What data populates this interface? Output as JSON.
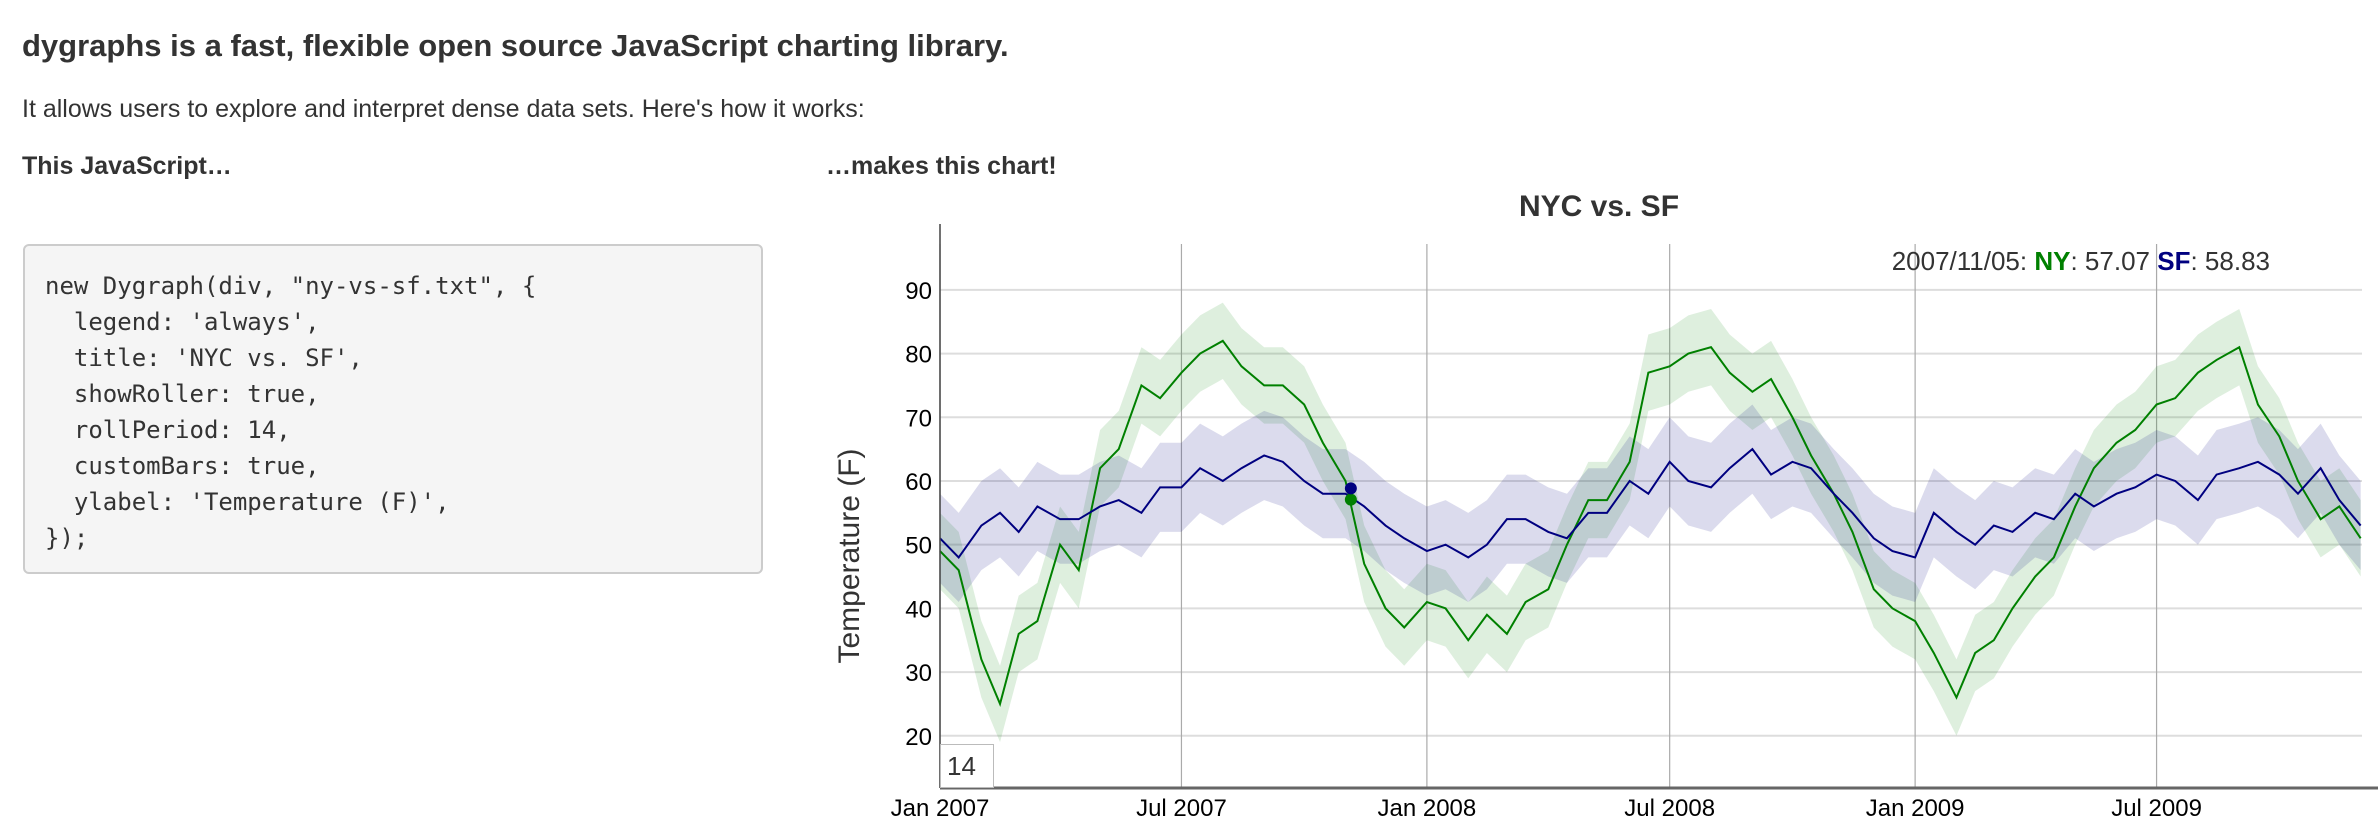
{
  "page": {
    "headline": "dygraphs is a fast, flexible open source JavaScript charting library.",
    "subline": "It allows users to explore and interpret dense data sets. Here's how it works:",
    "left_heading": "This JavaScript…",
    "right_heading": "…makes this chart!",
    "code": "new Dygraph(div, \"ny-vs-sf.txt\", {\n  legend: 'always',\n  title: 'NYC vs. SF',\n  showRoller: true,\n  rollPeriod: 14,\n  customBars: true,\n  ylabel: 'Temperature (F)',\n});"
  },
  "chart_data": {
    "type": "line",
    "title": "NYC vs. SF",
    "ylabel": "Temperature (F)",
    "xlabel": "",
    "ylim": [
      11.8,
      97.2
    ],
    "xlim": [
      "2007-01-01",
      "2009-12-02"
    ],
    "yticks": [
      20,
      30,
      40,
      50,
      60,
      70,
      80,
      90
    ],
    "xticks": [
      {
        "date": "2007-01-01",
        "label": "Jan 2007"
      },
      {
        "date": "2007-07-01",
        "label": "Jul 2007"
      },
      {
        "date": "2008-01-01",
        "label": "Jan 2008"
      },
      {
        "date": "2008-07-01",
        "label": "Jul 2008"
      },
      {
        "date": "2009-01-01",
        "label": "Jan 2009"
      },
      {
        "date": "2009-07-01",
        "label": "Jul 2009"
      }
    ],
    "grid": true,
    "roll_period": "14",
    "legend": {
      "date": "2007/11/05",
      "highlight_date": "2007-11-05",
      "entries": [
        {
          "name": "NY",
          "value": "57.07",
          "y": 57.07
        },
        {
          "name": "SF",
          "value": "58.83",
          "y": 58.83
        }
      ]
    },
    "x": [
      "2007-01-01",
      "2007-01-15",
      "2007-02-01",
      "2007-02-15",
      "2007-03-01",
      "2007-03-15",
      "2007-04-01",
      "2007-04-15",
      "2007-05-01",
      "2007-05-15",
      "2007-06-01",
      "2007-06-15",
      "2007-07-01",
      "2007-07-15",
      "2007-08-01",
      "2007-08-15",
      "2007-09-01",
      "2007-09-15",
      "2007-10-01",
      "2007-10-15",
      "2007-11-01",
      "2007-11-15",
      "2007-12-01",
      "2007-12-15",
      "2008-01-01",
      "2008-01-15",
      "2008-02-01",
      "2008-02-15",
      "2008-03-01",
      "2008-03-15",
      "2008-04-01",
      "2008-04-15",
      "2008-05-01",
      "2008-05-15",
      "2008-06-01",
      "2008-06-15",
      "2008-07-01",
      "2008-07-15",
      "2008-08-01",
      "2008-08-15",
      "2008-09-01",
      "2008-09-15",
      "2008-10-01",
      "2008-10-15",
      "2008-11-01",
      "2008-11-15",
      "2008-12-01",
      "2008-12-15",
      "2009-01-01",
      "2009-01-15",
      "2009-02-01",
      "2009-02-15",
      "2009-03-01",
      "2009-03-15",
      "2009-04-01",
      "2009-04-15",
      "2009-05-01",
      "2009-05-15",
      "2009-06-01",
      "2009-06-15",
      "2009-07-01",
      "2009-07-15",
      "2009-08-01",
      "2009-08-15",
      "2009-09-01",
      "2009-09-15",
      "2009-10-01",
      "2009-10-15",
      "2009-11-01",
      "2009-11-15",
      "2009-12-01"
    ],
    "series": [
      {
        "name": "NY",
        "color": "#008000",
        "band_halfwidth": 6,
        "values": [
          49,
          46,
          32,
          25,
          36,
          38,
          50,
          46,
          62,
          65,
          75,
          73,
          77,
          80,
          82,
          78,
          75,
          75,
          72,
          66,
          60,
          47,
          40,
          37,
          41,
          40,
          35,
          39,
          36,
          41,
          43,
          50,
          57,
          57,
          63,
          77,
          78,
          80,
          81,
          77,
          74,
          76,
          70,
          64,
          58,
          52,
          43,
          40,
          38,
          33,
          26,
          33,
          35,
          40,
          45,
          48,
          56,
          62,
          66,
          68,
          72,
          73,
          77,
          79,
          81,
          72,
          67,
          60,
          54,
          56,
          51
        ]
      },
      {
        "name": "SF",
        "color": "#000080",
        "band_halfwidth": 7,
        "values": [
          51,
          48,
          53,
          55,
          52,
          56,
          54,
          54,
          56,
          57,
          55,
          59,
          59,
          62,
          60,
          62,
          64,
          63,
          60,
          58,
          58,
          56,
          53,
          51,
          49,
          50,
          48,
          50,
          54,
          54,
          52,
          51,
          55,
          55,
          60,
          58,
          63,
          60,
          59,
          62,
          65,
          61,
          63,
          62,
          58,
          55,
          51,
          49,
          48,
          55,
          52,
          50,
          53,
          52,
          55,
          54,
          58,
          56,
          58,
          59,
          61,
          60,
          57,
          61,
          62,
          63,
          61,
          58,
          62,
          57,
          53
        ]
      }
    ]
  }
}
